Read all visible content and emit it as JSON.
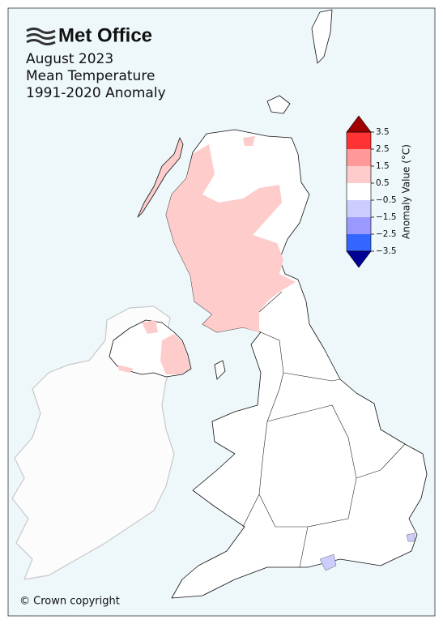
{
  "header": {
    "logo": "Met Office",
    "title_lines": [
      "August 2023",
      "Mean Temperature",
      "1991-2020 Anomaly"
    ]
  },
  "colorbar": {
    "label": "Anomaly Value (°C)",
    "lim": [
      -3.5,
      3.5
    ],
    "ticks": [
      3.5,
      2.5,
      1.5,
      0.5,
      {
        "value": -0.5,
        "label": "−0.5"
      },
      {
        "value": -1.5,
        "label": "−1.5"
      },
      {
        "value": -2.5,
        "label": "−2.5"
      },
      {
        "value": -3.5,
        "label": "−3.5"
      }
    ],
    "colors": [
      "#ff3333",
      "#ff9999",
      "#ffcccc",
      "#ffffff",
      "#ccccff",
      "#9999ff",
      "#3366ff"
    ],
    "over_color": "#a00000",
    "under_color": "#000099"
  },
  "footer": {
    "copyright": "© Crown copyright"
  }
}
